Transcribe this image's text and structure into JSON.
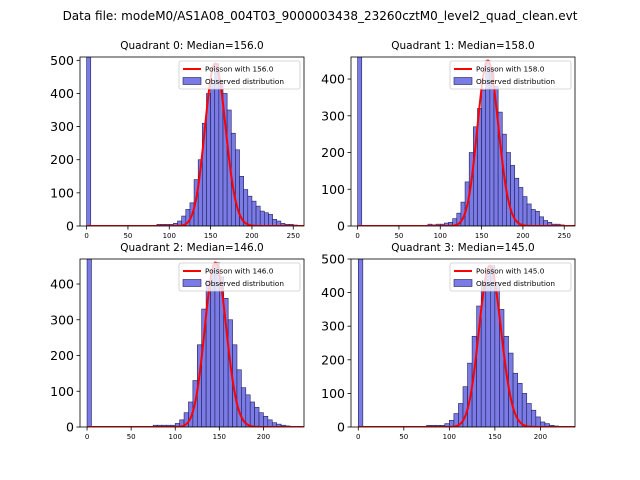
{
  "suptitle": "Data file: modeM0/AS1A08_004T03_9000003438_23260cztM0_level2_quad_clean.evt",
  "colors": {
    "bar_fill": "#7b7be6",
    "bar_edge": "#1f1f5a",
    "line": "#ff0000"
  },
  "chart_data": [
    {
      "type": "bar",
      "title": "Quadrant 0: Median=156.0",
      "median": 156.0,
      "legend": [
        "Poisson with 156.0",
        "Observed distribution"
      ],
      "legend_loc": "upper right",
      "xlim": [
        -8,
        263
      ],
      "ylim": [
        0,
        510
      ],
      "xticks": [
        0,
        50,
        100,
        150,
        200,
        250
      ],
      "yticks": [
        0,
        100,
        200,
        300,
        400,
        500
      ],
      "bin_width": 5,
      "bins": [
        [
          0,
          510
        ],
        [
          85,
          5
        ],
        [
          90,
          5
        ],
        [
          95,
          5
        ],
        [
          100,
          5
        ],
        [
          105,
          8
        ],
        [
          110,
          15
        ],
        [
          115,
          30
        ],
        [
          120,
          50
        ],
        [
          125,
          70
        ],
        [
          130,
          140
        ],
        [
          135,
          200
        ],
        [
          140,
          310
        ],
        [
          145,
          400
        ],
        [
          150,
          430
        ],
        [
          155,
          490
        ],
        [
          160,
          440
        ],
        [
          165,
          400
        ],
        [
          170,
          350
        ],
        [
          175,
          280
        ],
        [
          180,
          230
        ],
        [
          185,
          150
        ],
        [
          190,
          110
        ],
        [
          195,
          90
        ],
        [
          200,
          75
        ],
        [
          205,
          60
        ],
        [
          210,
          45
        ],
        [
          215,
          40
        ],
        [
          220,
          35
        ],
        [
          225,
          20
        ],
        [
          230,
          15
        ],
        [
          235,
          8
        ],
        [
          240,
          5
        ],
        [
          245,
          5
        ],
        [
          250,
          3
        ]
      ],
      "poisson_peak": 490
    },
    {
      "type": "bar",
      "title": "Quadrant 1: Median=158.0",
      "median": 158.0,
      "legend": [
        "Poisson with 158.0",
        "Observed distribution"
      ],
      "legend_loc": "upper right",
      "xlim": [
        -8,
        263
      ],
      "ylim": [
        0,
        460
      ],
      "xticks": [
        0,
        50,
        100,
        150,
        200,
        250
      ],
      "yticks": [
        0,
        100,
        200,
        300,
        400
      ],
      "bin_width": 5,
      "bins": [
        [
          0,
          460
        ],
        [
          85,
          5
        ],
        [
          90,
          3
        ],
        [
          95,
          5
        ],
        [
          100,
          5
        ],
        [
          105,
          8
        ],
        [
          110,
          10
        ],
        [
          115,
          20
        ],
        [
          120,
          35
        ],
        [
          125,
          65
        ],
        [
          130,
          120
        ],
        [
          135,
          200
        ],
        [
          140,
          270
        ],
        [
          145,
          320
        ],
        [
          150,
          370
        ],
        [
          155,
          450
        ],
        [
          160,
          430
        ],
        [
          165,
          380
        ],
        [
          170,
          310
        ],
        [
          175,
          250
        ],
        [
          180,
          200
        ],
        [
          185,
          165
        ],
        [
          190,
          130
        ],
        [
          195,
          105
        ],
        [
          200,
          80
        ],
        [
          205,
          60
        ],
        [
          210,
          45
        ],
        [
          215,
          40
        ],
        [
          220,
          25
        ],
        [
          225,
          15
        ],
        [
          230,
          10
        ],
        [
          235,
          5
        ],
        [
          240,
          5
        ],
        [
          245,
          3
        ]
      ],
      "poisson_peak": 450
    },
    {
      "type": "bar",
      "title": "Quadrant 2: Median=146.0",
      "median": 146.0,
      "legend": [
        "Poisson with 146.0",
        "Observed distribution"
      ],
      "legend_loc": "upper right",
      "xlim": [
        -8,
        246
      ],
      "ylim": [
        0,
        470
      ],
      "xticks": [
        0,
        50,
        100,
        150,
        200
      ],
      "yticks": [
        0,
        100,
        200,
        300,
        400
      ],
      "bin_width": 5,
      "bins": [
        [
          0,
          470
        ],
        [
          75,
          5
        ],
        [
          80,
          5
        ],
        [
          85,
          5
        ],
        [
          90,
          5
        ],
        [
          95,
          5
        ],
        [
          100,
          10
        ],
        [
          105,
          20
        ],
        [
          110,
          40
        ],
        [
          115,
          70
        ],
        [
          120,
          130
        ],
        [
          125,
          230
        ],
        [
          130,
          330
        ],
        [
          135,
          410
        ],
        [
          140,
          440
        ],
        [
          145,
          460
        ],
        [
          150,
          420
        ],
        [
          155,
          360
        ],
        [
          160,
          300
        ],
        [
          165,
          230
        ],
        [
          170,
          160
        ],
        [
          175,
          110
        ],
        [
          180,
          90
        ],
        [
          185,
          70
        ],
        [
          190,
          55
        ],
        [
          195,
          40
        ],
        [
          200,
          30
        ],
        [
          205,
          20
        ],
        [
          210,
          12
        ],
        [
          215,
          8
        ],
        [
          220,
          5
        ],
        [
          225,
          3
        ]
      ],
      "poisson_peak": 460
    },
    {
      "type": "bar",
      "title": "Quadrant 3: Median=145.0",
      "median": 145.0,
      "legend": [
        "Poisson with 145.0",
        "Observed distribution"
      ],
      "legend_loc": "upper right",
      "xlim": [
        -8,
        238
      ],
      "ylim": [
        0,
        500
      ],
      "xticks": [
        0,
        50,
        100,
        150,
        200
      ],
      "yticks": [
        0,
        100,
        200,
        300,
        400,
        500
      ],
      "bin_width": 5,
      "bins": [
        [
          0,
          500
        ],
        [
          75,
          5
        ],
        [
          80,
          5
        ],
        [
          85,
          5
        ],
        [
          90,
          5
        ],
        [
          95,
          10
        ],
        [
          100,
          20
        ],
        [
          105,
          40
        ],
        [
          110,
          70
        ],
        [
          115,
          120
        ],
        [
          120,
          190
        ],
        [
          125,
          270
        ],
        [
          130,
          360
        ],
        [
          135,
          430
        ],
        [
          140,
          470
        ],
        [
          145,
          480
        ],
        [
          150,
          430
        ],
        [
          155,
          350
        ],
        [
          160,
          270
        ],
        [
          165,
          220
        ],
        [
          170,
          160
        ],
        [
          175,
          130
        ],
        [
          180,
          100
        ],
        [
          185,
          70
        ],
        [
          190,
          50
        ],
        [
          195,
          30
        ],
        [
          200,
          15
        ],
        [
          205,
          10
        ],
        [
          210,
          5
        ],
        [
          215,
          3
        ]
      ],
      "poisson_peak": 480
    }
  ]
}
